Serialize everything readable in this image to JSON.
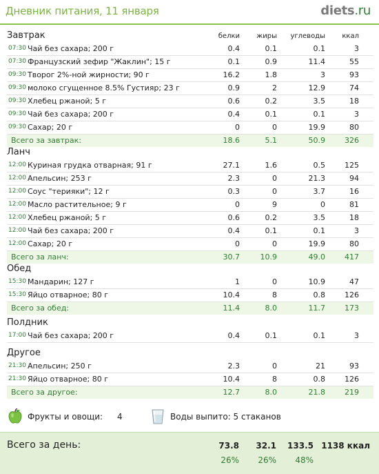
{
  "header": {
    "title": "Дневник питания, 11 января",
    "brand_name": "diets",
    "brand_tld": ".ru"
  },
  "columns": {
    "protein": "белки",
    "fat": "жиры",
    "carbs": "углеводы",
    "kcal": "ккал"
  },
  "sections": [
    {
      "title": "Завтрак",
      "items": [
        {
          "time": "07:30",
          "name": "Чай без сахара; 200 г",
          "protein": "0.4",
          "fat": "0.1",
          "carbs": "0.1",
          "kcal": "3"
        },
        {
          "time": "07:30",
          "name": "Французский зефир \"Жаклин\"; 15 г",
          "protein": "0.1",
          "fat": "0.9",
          "carbs": "11.4",
          "kcal": "55"
        },
        {
          "time": "09:30",
          "name": "Творог 2%-ной жирности; 90 г",
          "protein": "16.2",
          "fat": "1.8",
          "carbs": "3",
          "kcal": "93"
        },
        {
          "time": "09:30",
          "name": "молоко сгущенное 8.5% Густияр; 23 г",
          "protein": "0.9",
          "fat": "2",
          "carbs": "12.9",
          "kcal": "74"
        },
        {
          "time": "09:30",
          "name": "Хлебец ржаной; 5 г",
          "protein": "0.6",
          "fat": "0.2",
          "carbs": "3.5",
          "kcal": "18"
        },
        {
          "time": "09:30",
          "name": "Чай без сахара; 200 г",
          "protein": "0.4",
          "fat": "0.1",
          "carbs": "0.1",
          "kcal": "3"
        },
        {
          "time": "09:30",
          "name": "Сахар; 20 г",
          "protein": "0",
          "fat": "0",
          "carbs": "19.9",
          "kcal": "80"
        }
      ],
      "total": {
        "label": "Всего за завтрак:",
        "protein": "18.6",
        "fat": "5.1",
        "carbs": "50.9",
        "kcal": "326"
      }
    },
    {
      "title": "Ланч",
      "items": [
        {
          "time": "12:00",
          "name": "Куриная грудка отварная; 91 г",
          "protein": "27.1",
          "fat": "1.6",
          "carbs": "0.5",
          "kcal": "125"
        },
        {
          "time": "12:00",
          "name": "Апельсин; 253 г",
          "protein": "2.3",
          "fat": "0",
          "carbs": "21.3",
          "kcal": "94"
        },
        {
          "time": "12:00",
          "name": "Соус \"терияки\"; 12 г",
          "protein": "0.3",
          "fat": "0",
          "carbs": "3.7",
          "kcal": "16"
        },
        {
          "time": "12:00",
          "name": "Масло растительное; 9 г",
          "protein": "0",
          "fat": "9",
          "carbs": "0",
          "kcal": "81"
        },
        {
          "time": "12:00",
          "name": "Хлебец ржаной; 5 г",
          "protein": "0.6",
          "fat": "0.2",
          "carbs": "3.5",
          "kcal": "18"
        },
        {
          "time": "12:00",
          "name": "Чай без сахара; 200 г",
          "protein": "0.4",
          "fat": "0.1",
          "carbs": "0.1",
          "kcal": "3"
        },
        {
          "time": "12:00",
          "name": "Сахар; 20 г",
          "protein": "0",
          "fat": "0",
          "carbs": "19.9",
          "kcal": "80"
        }
      ],
      "total": {
        "label": "Всего за ланч:",
        "protein": "30.7",
        "fat": "10.9",
        "carbs": "49.0",
        "kcal": "417"
      }
    },
    {
      "title": "Обед",
      "items": [
        {
          "time": "15:30",
          "name": "Мандарин; 127 г",
          "protein": "1",
          "fat": "0",
          "carbs": "10.9",
          "kcal": "47"
        },
        {
          "time": "15:30",
          "name": "Яйцо отварное; 80 г",
          "protein": "10.4",
          "fat": "8",
          "carbs": "0.8",
          "kcal": "126"
        }
      ],
      "total": {
        "label": "Всего за обед:",
        "protein": "11.4",
        "fat": "8.0",
        "carbs": "11.7",
        "kcal": "173"
      }
    },
    {
      "title": "Полдник",
      "items": [
        {
          "time": "17:00",
          "name": "Чай без сахара; 200 г",
          "protein": "0.4",
          "fat": "0.1",
          "carbs": "0.1",
          "kcal": "3"
        }
      ]
    },
    {
      "title": "Другое",
      "items": [
        {
          "time": "21:30",
          "name": "Апельсин; 250 г",
          "protein": "2.3",
          "fat": "0",
          "carbs": "21",
          "kcal": "93"
        },
        {
          "time": "21:30",
          "name": "Яйцо отварное; 80 г",
          "protein": "10.4",
          "fat": "8",
          "carbs": "0.8",
          "kcal": "126"
        }
      ],
      "total": {
        "label": "Всего за другое:",
        "protein": "12.7",
        "fat": "8.0",
        "carbs": "21.8",
        "kcal": "219"
      }
    }
  ],
  "extras": {
    "fruits_label": "Фрукты и овощи:",
    "fruits_value": "4",
    "water_text": "Воды выпито: 5 стаканов",
    "apple_icon": "green-apple-icon",
    "glass_icon": "water-glass-icon"
  },
  "day_total": {
    "label": "Всего за день:",
    "protein": "73.8",
    "fat": "32.1",
    "carbs": "133.5",
    "kcal": "1138 ккал",
    "protein_pct": "26%",
    "fat_pct": "26%",
    "carbs_pct": "48%"
  },
  "colors": {
    "accent": "#7cb342",
    "time": "#2e7d32",
    "total_bg": "#eef6e6",
    "day_bg": "#e3f0d7"
  }
}
